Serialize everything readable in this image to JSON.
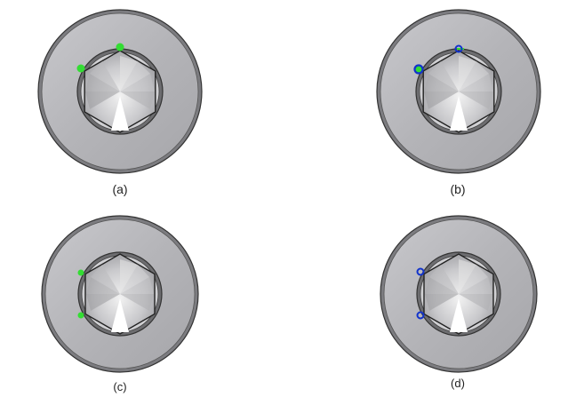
{
  "panels": [
    {
      "caption": "(a)",
      "marker_style": "filled",
      "marker_color": "#33dd33",
      "highlight_color": "#33dd33",
      "marker_count": 2
    },
    {
      "caption": "(b)",
      "marker_style": "ring",
      "marker_color": "#1133cc",
      "highlight_color": "#33dd33",
      "marker_count": 2
    },
    {
      "caption": "(c)",
      "marker_style": "filled",
      "marker_color": "#33dd33",
      "highlight_color": "#33dd33",
      "marker_count": 2
    },
    {
      "caption": "(d)",
      "marker_style": "ring",
      "marker_color": "#1133cc",
      "highlight_color": "#33dd33",
      "marker_count": 2
    }
  ],
  "colors": {
    "outer_ring": "#b9b9bd",
    "outer_rim": "#8a8a8e",
    "edge": "#3a3a3a",
    "socket": "#cfcfd2",
    "cone_light": "#f4f4f4",
    "cone_dark": "#9b9b9e"
  }
}
